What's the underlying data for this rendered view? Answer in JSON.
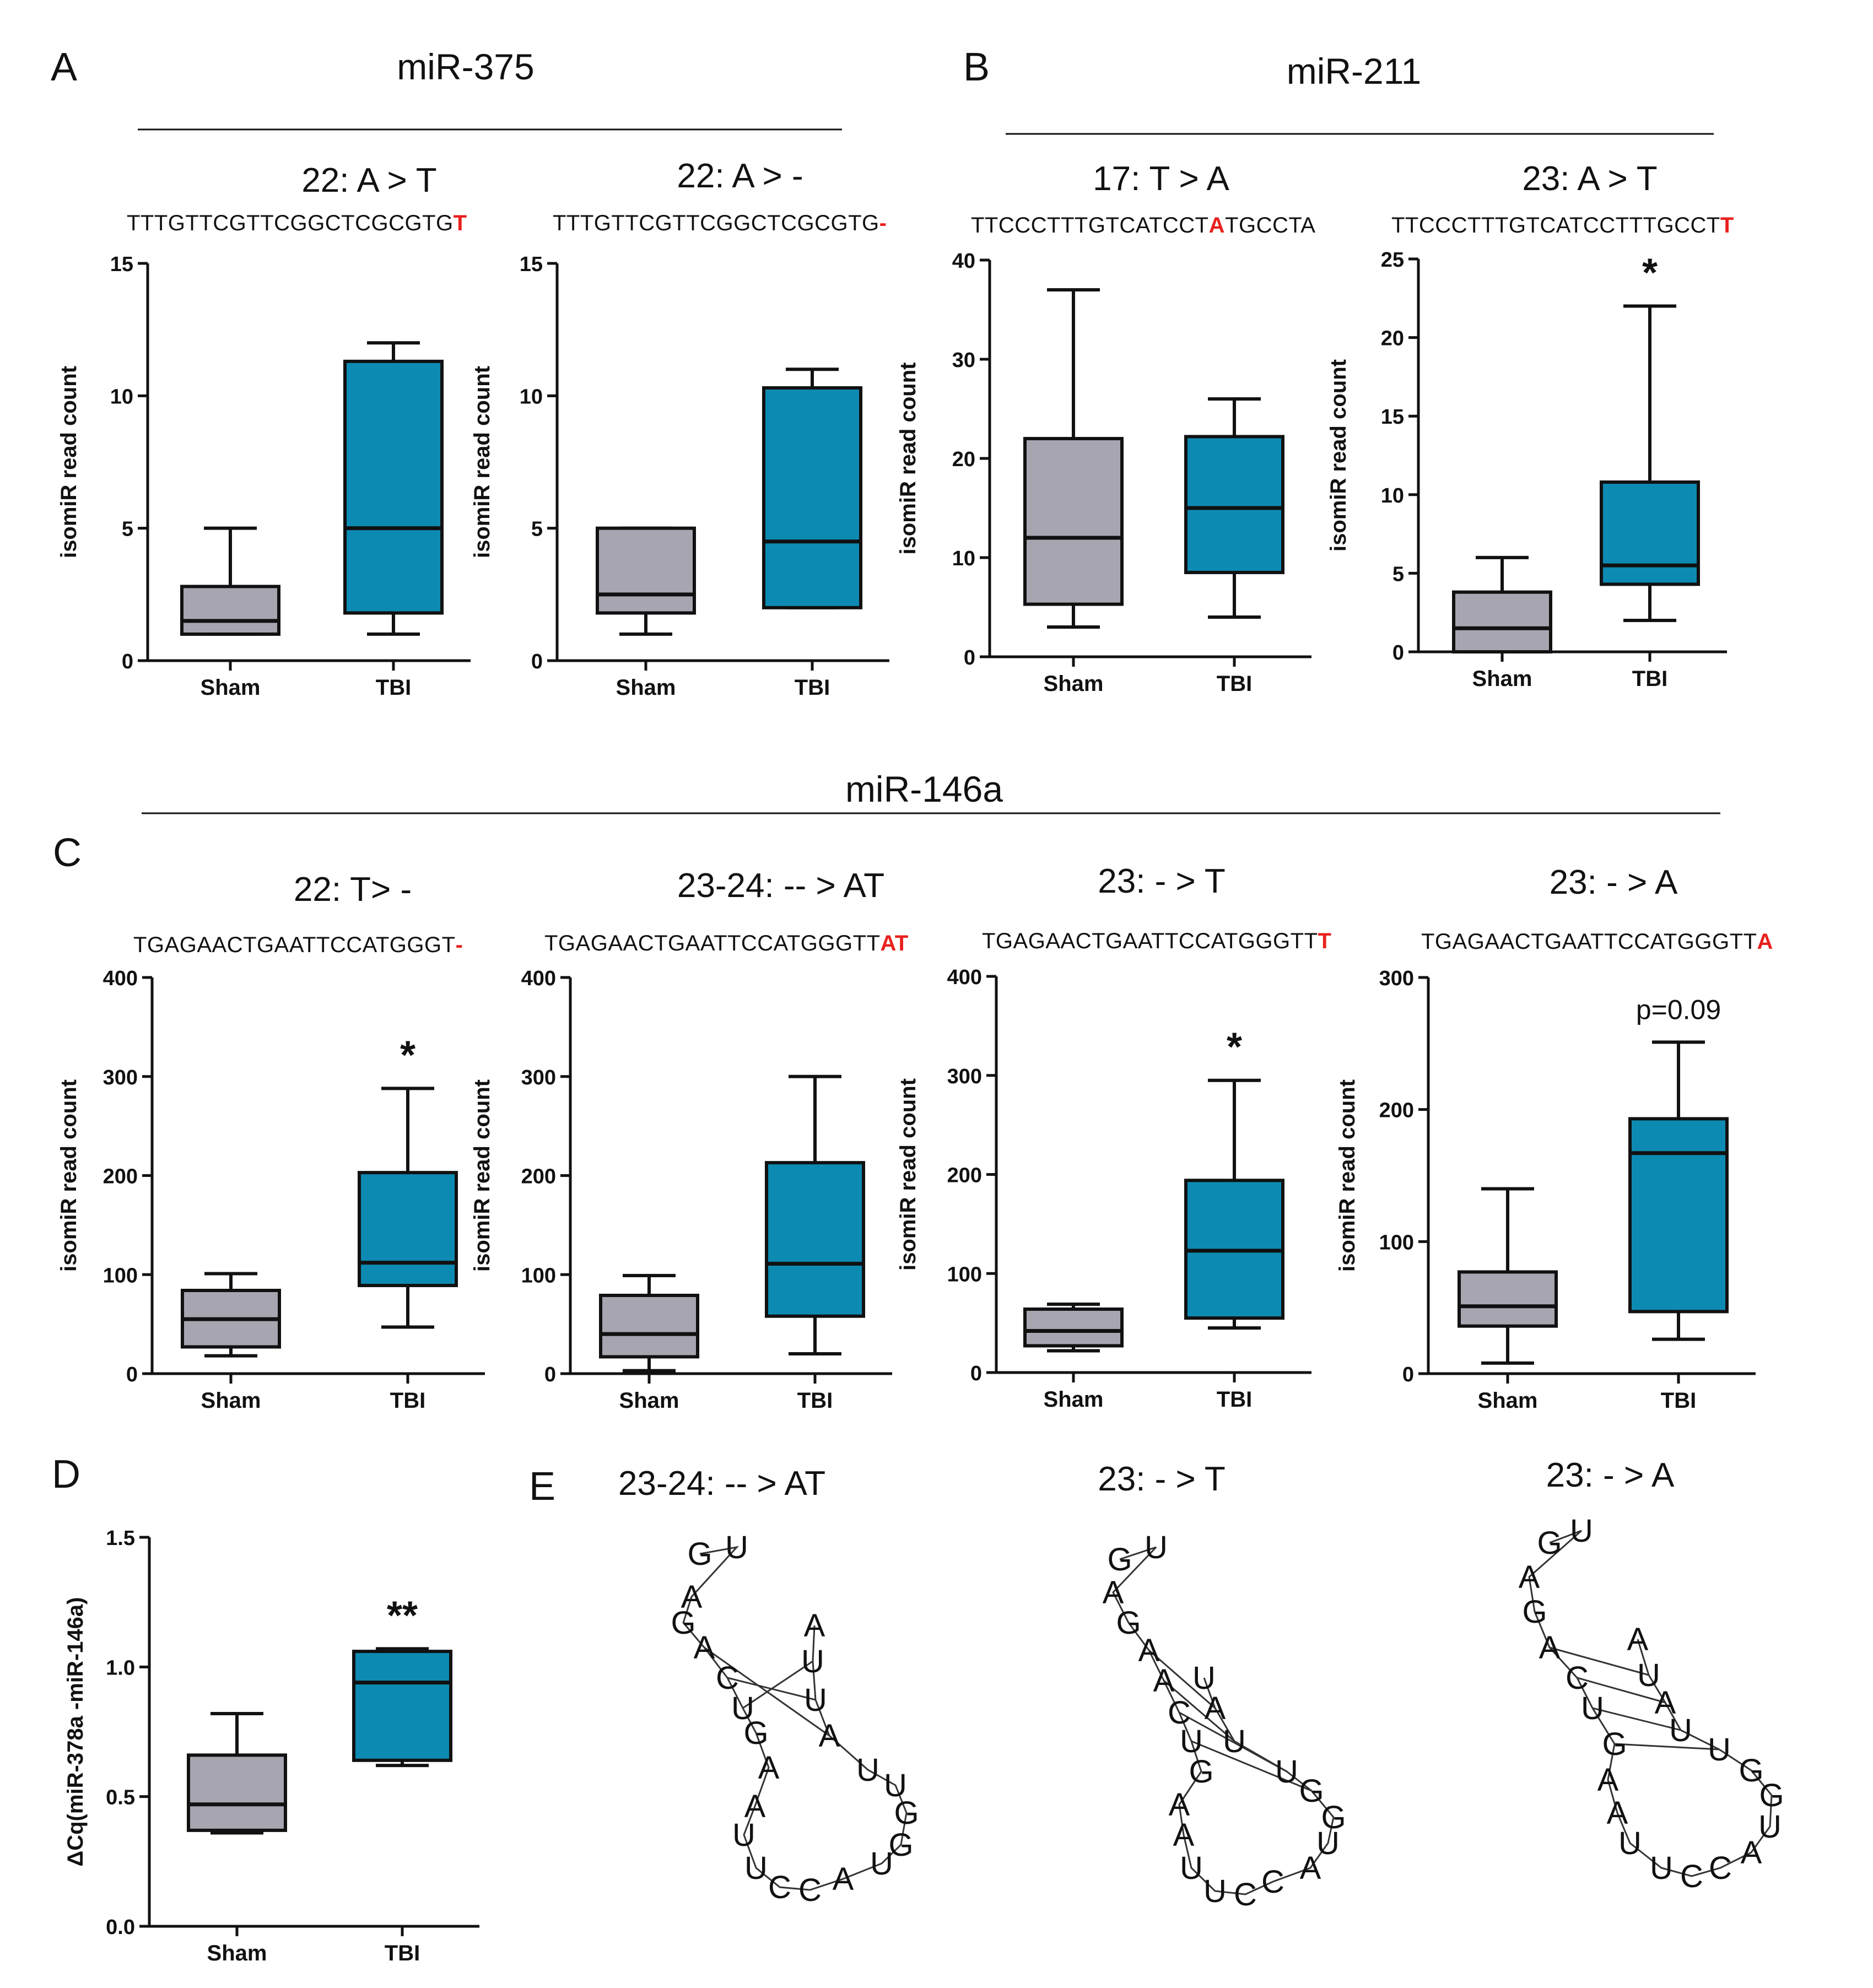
{
  "figure": {
    "panel_letters": [
      "A",
      "B",
      "C",
      "D",
      "E"
    ],
    "headers": [
      "miR-375",
      "miR-211",
      "miR-146a"
    ],
    "colors": {
      "sham": "#a7a5b0",
      "tbi": "#0d8ab2",
      "highlight": "#e8201d",
      "ink": "#111111"
    }
  },
  "chart_data": [
    {
      "type": "box",
      "panel": "A",
      "title": "22: A > T",
      "seq": "TTTGTTCGTTCGGCTCGCGTG",
      "seq_hl": "T",
      "ylabel": "isomiR read count",
      "ylim": [
        0,
        15
      ],
      "yticks": [
        0,
        5,
        10,
        15
      ],
      "categories": [
        "Sham",
        "TBI"
      ],
      "boxes": [
        {
          "min": 1,
          "q1": 1,
          "median": 1.5,
          "q3": 2.8,
          "max": 5
        },
        {
          "min": 1,
          "q1": 1.8,
          "median": 5,
          "q3": 11.3,
          "max": 12
        }
      ],
      "annotation": ""
    },
    {
      "type": "box",
      "panel": "A",
      "title": "22: A > -",
      "seq": "TTTGTTCGTTCGGCTCGCGTG",
      "seq_hl": "-",
      "ylabel": "isomiR read count",
      "ylim": [
        0,
        15
      ],
      "yticks": [
        0,
        5,
        10,
        15
      ],
      "categories": [
        "Sham",
        "TBI"
      ],
      "boxes": [
        {
          "min": 1,
          "q1": 1.8,
          "median": 2.5,
          "q3": 5,
          "max": 5
        },
        {
          "min": 2,
          "q1": 2,
          "median": 4.5,
          "q3": 10.3,
          "max": 11
        }
      ],
      "annotation": ""
    },
    {
      "type": "box",
      "panel": "B",
      "title": "17: T > A",
      "seq": "TTCCCTTTGTCATCCT",
      "seq_hl": "A",
      "seq_after": "TGCCTA",
      "ylabel": "isomiR read count",
      "ylim": [
        0,
        40
      ],
      "yticks": [
        0,
        10,
        20,
        30,
        40
      ],
      "categories": [
        "Sham",
        "TBI"
      ],
      "boxes": [
        {
          "min": 3,
          "q1": 5.3,
          "median": 12,
          "q3": 22,
          "max": 37
        },
        {
          "min": 4,
          "q1": 8.5,
          "median": 15,
          "q3": 22.2,
          "max": 26
        }
      ],
      "annotation": ""
    },
    {
      "type": "box",
      "panel": "B",
      "title": "23: A > T",
      "seq": "TTCCCTTTGTCATCCTTTGCCT",
      "seq_hl": "T",
      "ylabel": "isomiR read count",
      "ylim": [
        0,
        25
      ],
      "yticks": [
        0,
        5,
        10,
        15,
        20,
        25
      ],
      "categories": [
        "Sham",
        "TBI"
      ],
      "boxes": [
        {
          "min": 0,
          "q1": 0,
          "median": 1.5,
          "q3": 3.8,
          "max": 6
        },
        {
          "min": 2,
          "q1": 4.3,
          "median": 5.5,
          "q3": 10.8,
          "max": 22
        }
      ],
      "annotation": "*"
    },
    {
      "type": "box",
      "panel": "C",
      "title": "22: T> -",
      "seq": "TGAGAACTGAATTCCATGGGT",
      "seq_hl": "-",
      "ylabel": "isomiR read count",
      "ylim": [
        0,
        400
      ],
      "yticks": [
        0,
        100,
        200,
        300,
        400
      ],
      "categories": [
        "Sham",
        "TBI"
      ],
      "boxes": [
        {
          "min": 18,
          "q1": 27,
          "median": 55,
          "q3": 84,
          "max": 101
        },
        {
          "min": 47,
          "q1": 89,
          "median": 112,
          "q3": 203,
          "max": 288
        }
      ],
      "annotation": "*"
    },
    {
      "type": "box",
      "panel": "C",
      "title": "23-24: -- > AT",
      "seq": "TGAGAACTGAATTCCATGGGTT",
      "seq_hl": "AT",
      "ylabel": "isomiR read count",
      "ylim": [
        0,
        400
      ],
      "yticks": [
        0,
        100,
        200,
        300,
        400
      ],
      "categories": [
        "Sham",
        "TBI"
      ],
      "boxes": [
        {
          "min": 3,
          "q1": 17,
          "median": 40,
          "q3": 79,
          "max": 99
        },
        {
          "min": 20,
          "q1": 58,
          "median": 111,
          "q3": 213,
          "max": 300
        }
      ],
      "annotation": ""
    },
    {
      "type": "box",
      "panel": "C",
      "title": "23: - > T",
      "seq": "TGAGAACTGAATTCCATGGGTT",
      "seq_hl": "T",
      "ylabel": "isomiR read count",
      "ylim": [
        0,
        400
      ],
      "yticks": [
        0,
        100,
        200,
        300,
        400
      ],
      "categories": [
        "Sham",
        "TBI"
      ],
      "boxes": [
        {
          "min": 22,
          "q1": 27,
          "median": 42,
          "q3": 64,
          "max": 69
        },
        {
          "min": 45,
          "q1": 55,
          "median": 123,
          "q3": 194,
          "max": 295
        }
      ],
      "annotation": "*"
    },
    {
      "type": "box",
      "panel": "C",
      "title": "23: - > A",
      "seq": "TGAGAACTGAATTCCATGGGTT",
      "seq_hl": "A",
      "ylabel": "isomiR read count",
      "ylim": [
        0,
        300
      ],
      "yticks": [
        0,
        100,
        200,
        300
      ],
      "categories": [
        "Sham",
        "TBI"
      ],
      "boxes": [
        {
          "min": 8,
          "q1": 36,
          "median": 51,
          "q3": 77,
          "max": 140
        },
        {
          "min": 26,
          "q1": 47,
          "median": 167,
          "q3": 193,
          "max": 251
        }
      ],
      "annotation": "p=0.09"
    },
    {
      "type": "box",
      "panel": "D",
      "title": "",
      "seq": "",
      "seq_hl": "",
      "ylabel": "ΔCq(miR-378a -miR-146a)",
      "ylim": [
        0,
        1.5
      ],
      "yticks": [
        0,
        0.5,
        1.0,
        1.5
      ],
      "ytick_labels": [
        "0.0",
        "0.5",
        "1.0",
        "1.5"
      ],
      "categories": [
        "Sham",
        "TBI"
      ],
      "boxes": [
        {
          "min": 0.36,
          "q1": 0.37,
          "median": 0.47,
          "q3": 0.66,
          "max": 0.82
        },
        {
          "min": 0.62,
          "q1": 0.64,
          "median": 0.94,
          "q3": 1.06,
          "max": 1.07
        }
      ],
      "annotation": "**"
    }
  ],
  "structures": [
    {
      "title": "23-24: -- > AT",
      "bases": [
        "G",
        "U",
        "A",
        "G",
        "A",
        "C",
        "U",
        "G",
        "A",
        "A",
        "U",
        "U",
        "C",
        "C",
        "A",
        "U",
        "G",
        "G",
        "U",
        "U",
        "A",
        "U",
        "U",
        "A"
      ]
    },
    {
      "title": "23: - > T",
      "bases": [
        "G",
        "U",
        "A",
        "G",
        "A",
        "A",
        "C",
        "U",
        "G",
        "A",
        "A",
        "U",
        "U",
        "C",
        "C",
        "A",
        "U",
        "G",
        "G",
        "U",
        "U",
        "A",
        "U"
      ]
    },
    {
      "title": "23: - > A",
      "bases": [
        "G",
        "U",
        "A",
        "G",
        "A",
        "C",
        "U",
        "G",
        "A",
        "A",
        "U",
        "U",
        "C",
        "C",
        "A",
        "U",
        "G",
        "G",
        "U",
        "U",
        "A",
        "U",
        "A"
      ]
    }
  ]
}
